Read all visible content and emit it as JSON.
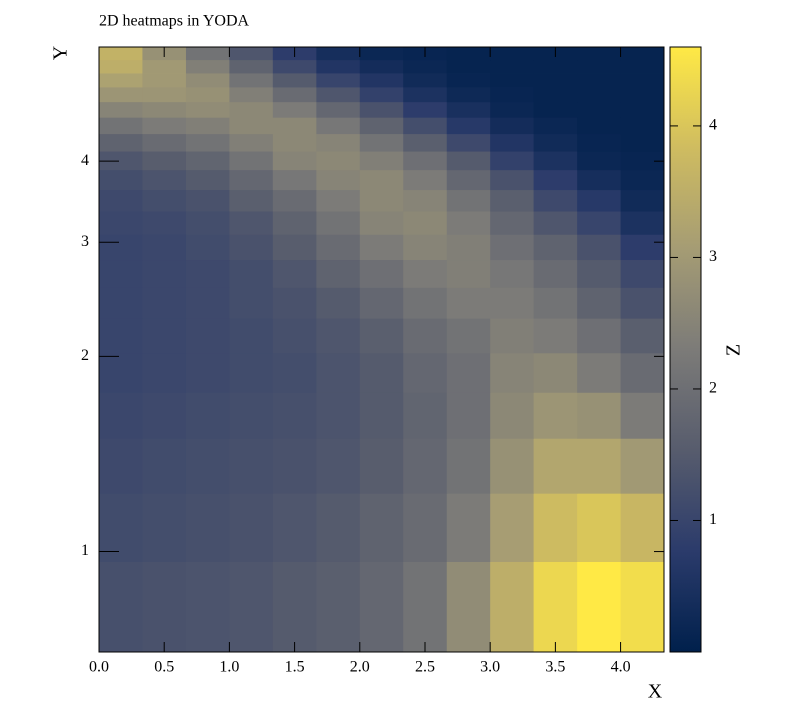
{
  "chart_data": {
    "type": "heatmap",
    "title": "2D heatmaps in YODA",
    "x_label": "X",
    "y_label": "Y",
    "z_label": "Z",
    "x_bins": [
      0,
      0.333,
      0.667,
      1,
      1.333,
      1.667,
      2,
      2.333,
      2.667,
      3,
      3.333,
      3.667,
      4,
      4.333
    ],
    "y_bins": [
      0.7,
      0.965,
      1.23,
      1.495,
      1.76,
      2.025,
      2.29,
      2.555,
      2.82,
      3.085,
      3.35,
      3.615,
      3.88,
      4.145,
      4.41,
      4.675,
      4.94,
      5.205,
      5.47,
      5.735,
      6.0
    ],
    "z": [
      [
        1.25,
        1.3,
        1.35,
        1.4,
        1.5,
        1.6,
        1.8,
        2.1,
        2.7,
        3.5,
        4.3,
        4.6,
        4.4
      ],
      [
        1.15,
        1.2,
        1.25,
        1.3,
        1.4,
        1.5,
        1.7,
        1.9,
        2.3,
        3.1,
        3.8,
        4.0,
        3.7
      ],
      [
        1.1,
        1.15,
        1.2,
        1.25,
        1.3,
        1.4,
        1.55,
        1.8,
        2.1,
        2.8,
        3.3,
        3.3,
        3.0
      ],
      [
        1.05,
        1.1,
        1.15,
        1.2,
        1.25,
        1.35,
        1.5,
        1.75,
        2.0,
        2.6,
        2.9,
        2.8,
        2.3
      ],
      [
        1.0,
        1.05,
        1.1,
        1.15,
        1.2,
        1.35,
        1.5,
        1.8,
        2.0,
        2.5,
        2.6,
        2.3,
        1.9
      ],
      [
        1.0,
        1.05,
        1.1,
        1.15,
        1.25,
        1.4,
        1.6,
        1.9,
        2.1,
        2.4,
        2.3,
        2.0,
        1.6
      ],
      [
        1.0,
        1.05,
        1.1,
        1.2,
        1.3,
        1.5,
        1.8,
        2.1,
        2.3,
        2.3,
        2.1,
        1.7,
        1.3
      ],
      [
        1.0,
        1.05,
        1.1,
        1.2,
        1.4,
        1.7,
        2.0,
        2.3,
        2.4,
        2.2,
        1.9,
        1.5,
        1.1
      ],
      [
        1.0,
        1.05,
        1.15,
        1.3,
        1.55,
        1.9,
        2.3,
        2.5,
        2.4,
        2.0,
        1.7,
        1.3,
        0.8
      ],
      [
        1.05,
        1.1,
        1.2,
        1.4,
        1.7,
        2.1,
        2.5,
        2.6,
        2.3,
        1.8,
        1.4,
        1.0,
        0.5
      ],
      [
        1.1,
        1.2,
        1.3,
        1.6,
        1.9,
        2.3,
        2.6,
        2.5,
        2.1,
        1.6,
        1.1,
        0.7,
        0.3
      ],
      [
        1.2,
        1.35,
        1.5,
        1.8,
        2.2,
        2.5,
        2.6,
        2.3,
        1.8,
        1.3,
        0.8,
        0.4,
        0.2
      ],
      [
        1.4,
        1.55,
        1.75,
        2.1,
        2.5,
        2.6,
        2.4,
        2.0,
        1.5,
        0.9,
        0.5,
        0.2,
        0.15
      ],
      [
        1.7,
        1.9,
        2.1,
        2.4,
        2.6,
        2.5,
        2.1,
        1.6,
        1.1,
        0.6,
        0.3,
        0.15,
        0.1
      ],
      [
        2.1,
        2.3,
        2.4,
        2.6,
        2.6,
        2.2,
        1.7,
        1.2,
        0.7,
        0.35,
        0.2,
        0.1,
        0.1
      ],
      [
        2.5,
        2.6,
        2.7,
        2.6,
        2.3,
        1.8,
        1.3,
        0.8,
        0.45,
        0.2,
        0.1,
        0.1,
        0.1
      ],
      [
        2.9,
        2.9,
        2.8,
        2.4,
        1.9,
        1.4,
        0.9,
        0.5,
        0.25,
        0.15,
        0.1,
        0.1,
        0.1
      ],
      [
        3.2,
        3.0,
        2.7,
        2.1,
        1.5,
        1.0,
        0.6,
        0.3,
        0.15,
        0.1,
        0.1,
        0.1,
        0.1
      ],
      [
        3.5,
        3.0,
        2.4,
        1.7,
        1.1,
        0.6,
        0.35,
        0.2,
        0.1,
        0.1,
        0.1,
        0.1,
        0.1
      ],
      [
        3.6,
        2.8,
        2.1,
        1.4,
        0.8,
        0.4,
        0.2,
        0.15,
        0.1,
        0.1,
        0.1,
        0.1,
        0.1
      ]
    ],
    "xlim": [
      0,
      4.333
    ],
    "ylim": [
      0.7,
      6.0
    ],
    "zlim": [
      0,
      4.6
    ],
    "y_log": true,
    "xticks": [
      {
        "value": 0,
        "label": "0.0"
      },
      0.5,
      {
        "value": 1,
        "label": "1.0"
      },
      1.5,
      {
        "value": 2,
        "label": "2.0"
      },
      2.5,
      {
        "value": 3,
        "label": "3.0"
      },
      3.5,
      {
        "value": 4,
        "label": "4.0"
      }
    ],
    "yticks": [
      1,
      2,
      3,
      4
    ],
    "zticks": [
      1,
      2,
      3,
      4
    ],
    "colormap": [
      "#00204c",
      "#2b3b6b",
      "#575c6d",
      "#7c7b78",
      "#a59c74",
      "#cfbc60",
      "#ffe945"
    ]
  }
}
